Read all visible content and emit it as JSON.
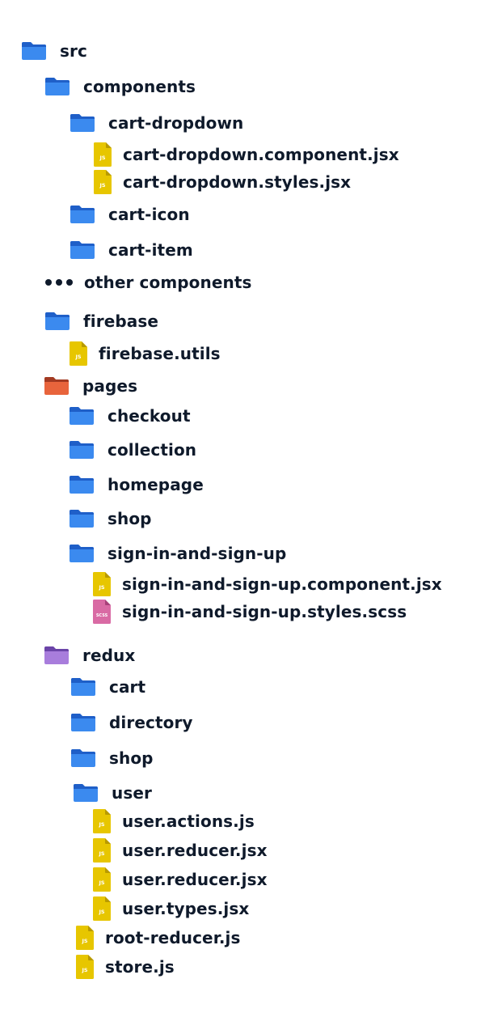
{
  "colors": {
    "folder": "#3b8aef",
    "folder_tab": "#1f5fc8",
    "folder_pages": "#e8643c",
    "folder_pages_tab": "#a23a22",
    "folder_redux": "#a87ddc",
    "folder_redux_tab": "#6b44a8",
    "file_js": "#e7c600",
    "file_js_fold": "#b89a00",
    "file_scss": "#d96aa4",
    "file_scss_fold": "#a8407a",
    "text": "#0f1a2b"
  },
  "tree": [
    {
      "type": "folder",
      "label": "src",
      "icon": "folder-icon",
      "color": "folder"
    },
    {
      "type": "folder",
      "label": "components",
      "icon": "folder-icon",
      "color": "folder"
    },
    {
      "type": "folder",
      "label": "cart-dropdown",
      "icon": "folder-icon",
      "color": "folder"
    },
    {
      "type": "file",
      "label": "cart-dropdown.component.jsx",
      "icon": "js-file-icon",
      "badge": "JS"
    },
    {
      "type": "file",
      "label": "cart-dropdown.styles.jsx",
      "icon": "js-file-icon",
      "badge": "JS"
    },
    {
      "type": "folder",
      "label": "cart-icon",
      "icon": "folder-icon",
      "color": "folder"
    },
    {
      "type": "folder",
      "label": "cart-item",
      "icon": "folder-icon",
      "color": "folder"
    },
    {
      "type": "more",
      "label": "other components",
      "icon": "ellipsis-icon"
    },
    {
      "type": "folder",
      "label": "firebase",
      "icon": "folder-icon",
      "color": "folder"
    },
    {
      "type": "file",
      "label": "firebase.utils",
      "icon": "js-file-icon",
      "badge": "JS"
    },
    {
      "type": "folder",
      "label": "pages",
      "icon": "folder-icon",
      "color": "folder_pages"
    },
    {
      "type": "folder",
      "label": "checkout",
      "icon": "folder-icon",
      "color": "folder"
    },
    {
      "type": "folder",
      "label": "collection",
      "icon": "folder-icon",
      "color": "folder"
    },
    {
      "type": "folder",
      "label": "homepage",
      "icon": "folder-icon",
      "color": "folder"
    },
    {
      "type": "folder",
      "label": "shop",
      "icon": "folder-icon",
      "color": "folder"
    },
    {
      "type": "folder",
      "label": "sign-in-and-sign-up",
      "icon": "folder-icon",
      "color": "folder"
    },
    {
      "type": "file",
      "label": "sign-in-and-sign-up.component.jsx",
      "icon": "js-file-icon",
      "badge": "JS"
    },
    {
      "type": "file",
      "label": "sign-in-and-sign-up.styles.scss",
      "icon": "scss-file-icon",
      "badge": "SCSS"
    },
    {
      "type": "folder",
      "label": "redux",
      "icon": "folder-icon",
      "color": "folder_redux"
    },
    {
      "type": "folder",
      "label": "cart",
      "icon": "folder-icon",
      "color": "folder"
    },
    {
      "type": "folder",
      "label": "directory",
      "icon": "folder-icon",
      "color": "folder"
    },
    {
      "type": "folder",
      "label": "shop",
      "icon": "folder-icon",
      "color": "folder"
    },
    {
      "type": "folder",
      "label": "user",
      "icon": "folder-icon",
      "color": "folder"
    },
    {
      "type": "file",
      "label": "user.actions.js",
      "icon": "js-file-icon",
      "badge": "JS"
    },
    {
      "type": "file",
      "label": "user.reducer.jsx",
      "icon": "js-file-icon",
      "badge": "JS"
    },
    {
      "type": "file",
      "label": "user.reducer.jsx",
      "icon": "js-file-icon",
      "badge": "JS"
    },
    {
      "type": "file",
      "label": "user.types.jsx",
      "icon": "js-file-icon",
      "badge": "JS"
    },
    {
      "type": "file",
      "label": "root-reducer.js",
      "icon": "js-file-icon",
      "badge": "JS"
    },
    {
      "type": "file",
      "label": "store.js",
      "icon": "js-file-icon",
      "badge": "JS"
    }
  ]
}
